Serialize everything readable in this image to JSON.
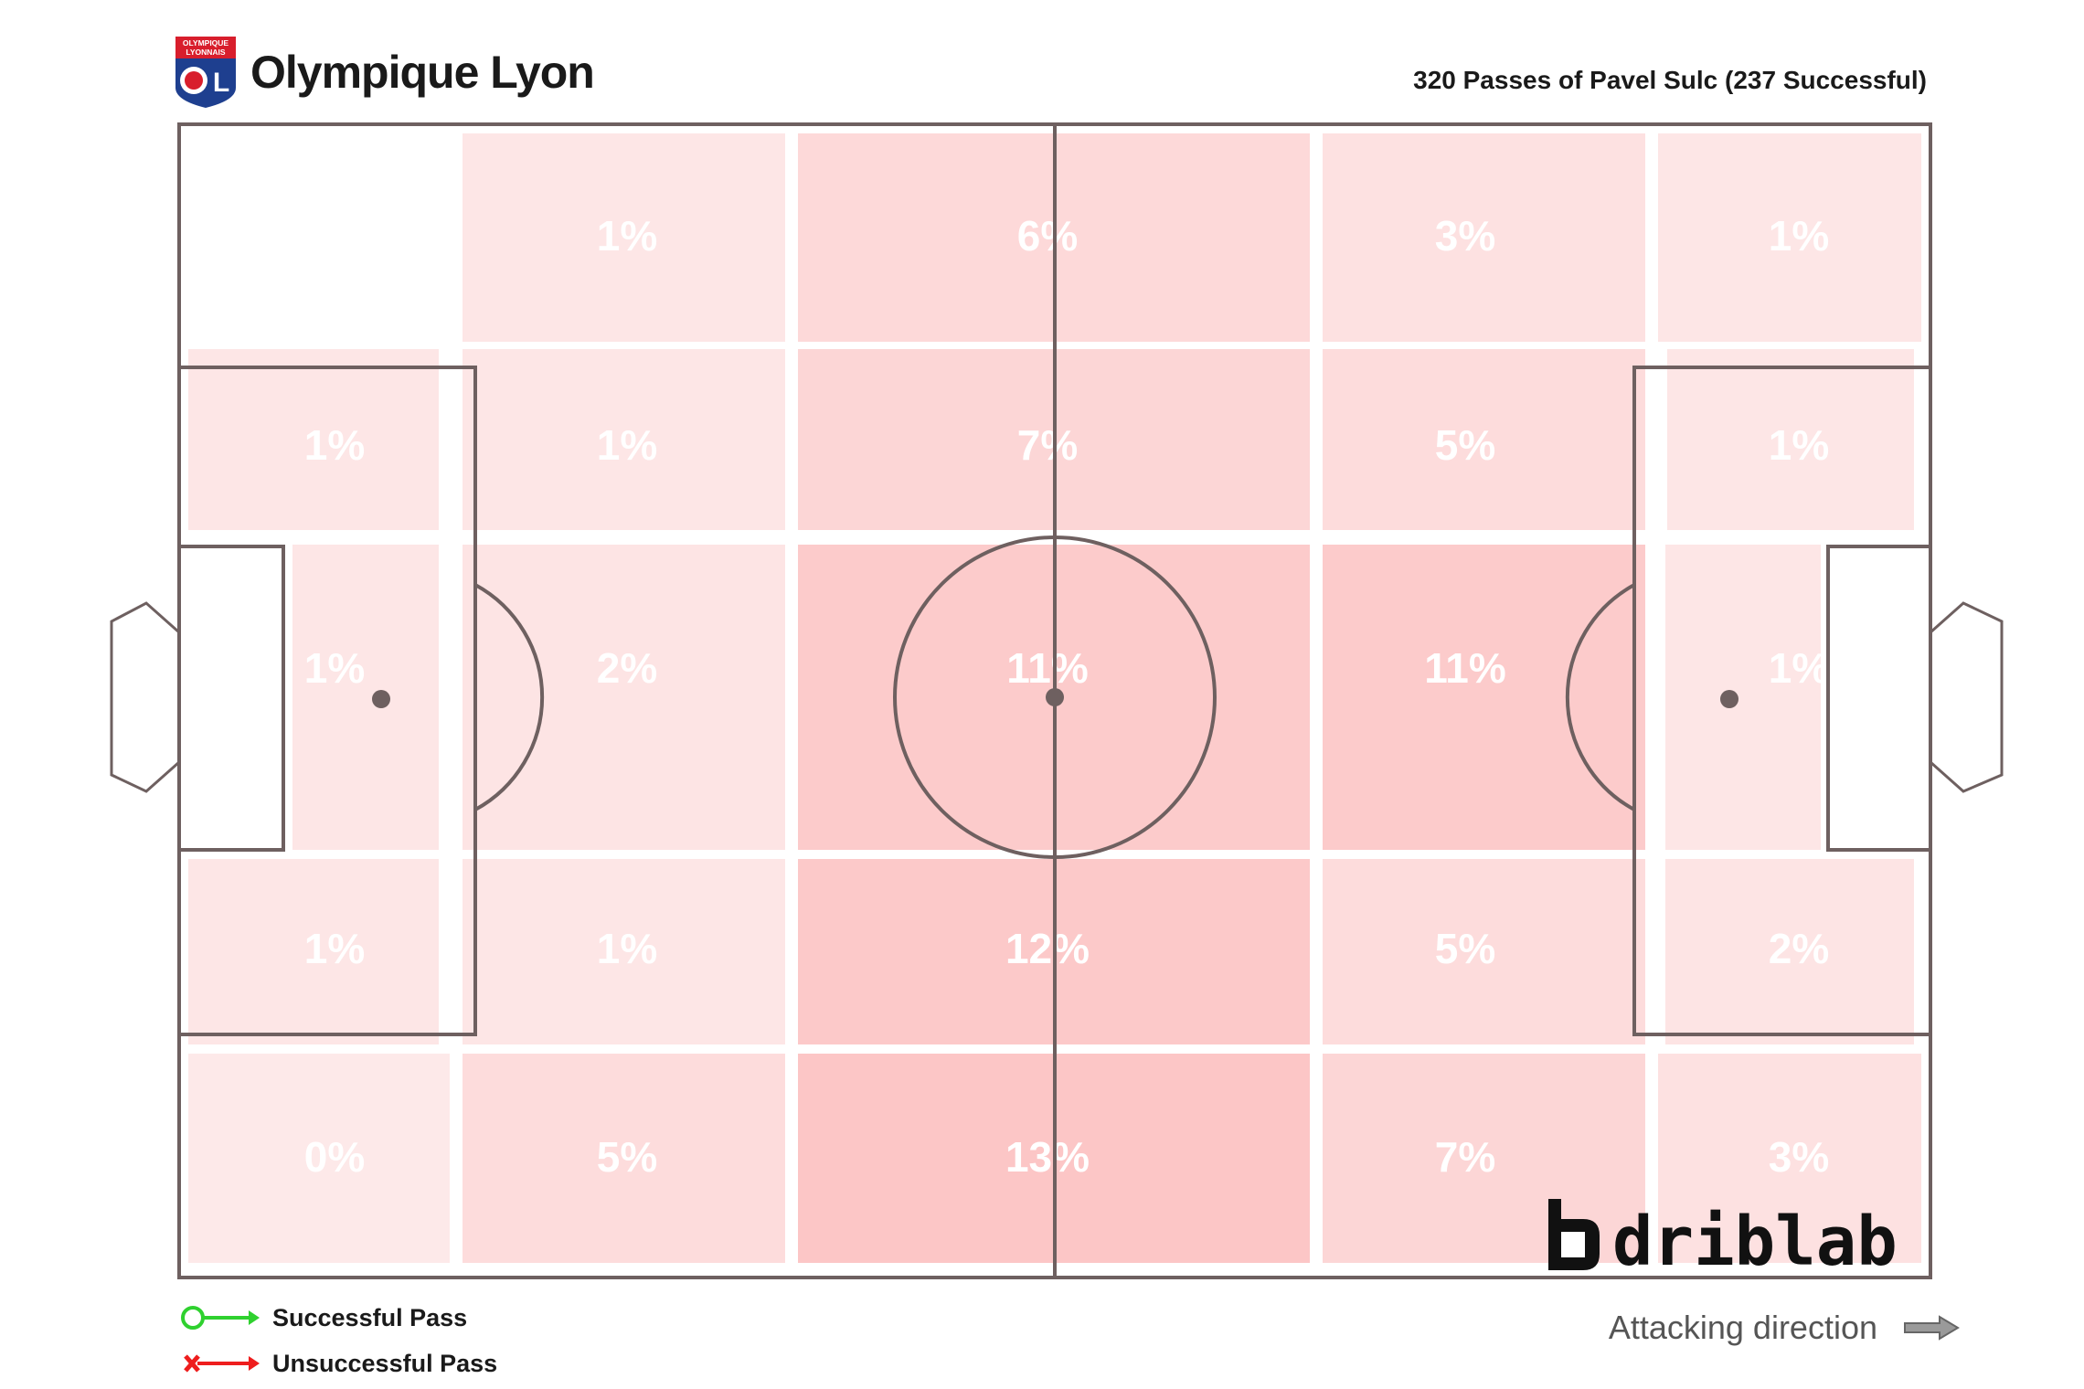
{
  "header": {
    "team_name": "Olympique Lyon",
    "logo_text_top": "OLYMPIQUE",
    "logo_text_bottom": "LYONNAIS",
    "logo_letters": "OL"
  },
  "subtitle": "320 Passes of Pavel Sulc (237 Successful)",
  "legend": {
    "successful": "Successful Pass",
    "unsuccessful": "Unsuccessful Pass"
  },
  "attacking_direction": "Attacking direction",
  "brand": "driblab",
  "colors": {
    "zone_base": "#fde9e9",
    "zone_max": "#fcc6c6",
    "pitch_line": "#6e6060",
    "success": "#2fd12f",
    "fail": "#ee1d1d"
  },
  "chart_data": {
    "type": "heatmap",
    "rows": 5,
    "columns": 5,
    "unit": "%",
    "values": [
      [
        null,
        1,
        6,
        3,
        1
      ],
      [
        1,
        1,
        7,
        5,
        1
      ],
      [
        1,
        2,
        11,
        11,
        1
      ],
      [
        1,
        1,
        12,
        5,
        2
      ],
      [
        0,
        5,
        13,
        7,
        3
      ]
    ],
    "labels": [
      [
        "",
        "1%",
        "6%",
        "3%",
        "1%"
      ],
      [
        "1%",
        "1%",
        "7%",
        "5%",
        "1%"
      ],
      [
        "1%",
        "2%",
        "11%",
        "11%",
        "1%"
      ],
      [
        "1%",
        "1%",
        "12%",
        "5%",
        "2%"
      ],
      [
        "0%",
        "5%",
        "13%",
        "7%",
        "3%"
      ]
    ]
  }
}
